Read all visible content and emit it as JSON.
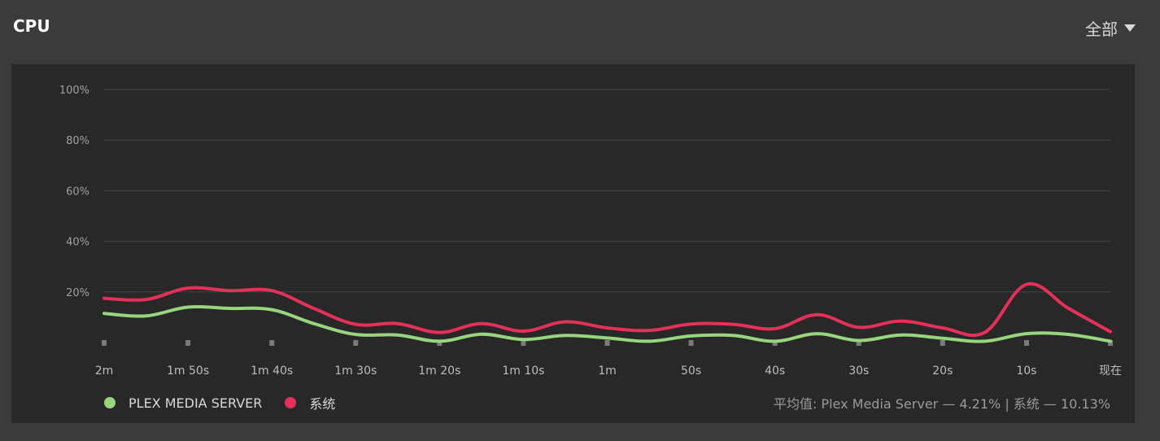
{
  "header": {
    "title": "CPU",
    "filter_label": "全部"
  },
  "legend": [
    {
      "name": "PLEX MEDIA SERVER",
      "color": "#97d57e"
    },
    {
      "name": "系统",
      "color": "#e5305a"
    }
  ],
  "average": {
    "label": "平均值:",
    "text": "Plex Media Server — 4.21% | 系统 — 10.13%"
  },
  "colors": {
    "background": "#3b3b3b",
    "panel": "#282828",
    "grid": "#444444",
    "tick_text": "#a0a0a0"
  },
  "chart_data": {
    "type": "line",
    "title": "CPU",
    "x": [
      "2m",
      "",
      "1m 50s",
      "",
      "1m 40s",
      "",
      "1m 30s",
      "",
      "1m 20s",
      "",
      "1m 10s",
      "",
      "1m",
      "",
      "50s",
      "",
      "40s",
      "",
      "30s",
      "",
      "20s",
      "",
      "10s",
      "",
      "现在"
    ],
    "x_tick_labels": [
      "2m",
      "1m 50s",
      "1m 40s",
      "1m 30s",
      "1m 20s",
      "1m 10s",
      "1m",
      "50s",
      "40s",
      "30s",
      "20s",
      "10s",
      "现在"
    ],
    "y_ticks": [
      "100%",
      "80%",
      "60%",
      "40%",
      "20%"
    ],
    "y_tick_values": [
      100,
      80,
      60,
      40,
      20
    ],
    "ylim": [
      0,
      100
    ],
    "grid": true,
    "legend_placement": "bottom-left",
    "series": [
      {
        "name": "PLEX MEDIA SERVER",
        "color": "#97d57e",
        "values": [
          11.5,
          10.5,
          14,
          13.5,
          13,
          7.5,
          3.2,
          3,
          0.5,
          3.3,
          1.2,
          2.8,
          1.8,
          0.5,
          2.6,
          2.8,
          0.5,
          3.5,
          0.8,
          3,
          1.7,
          0.5,
          3.5,
          3.2,
          0.5
        ]
      },
      {
        "name": "系统",
        "color": "#e5305a",
        "values": [
          17.5,
          17,
          21.5,
          20.5,
          20.5,
          13.5,
          7.2,
          7.5,
          4,
          7.5,
          4.5,
          8.2,
          5.8,
          4.8,
          7.3,
          7.2,
          5.5,
          11,
          6,
          8.5,
          5.8,
          4,
          23,
          13.5,
          4.3
        ]
      }
    ]
  }
}
